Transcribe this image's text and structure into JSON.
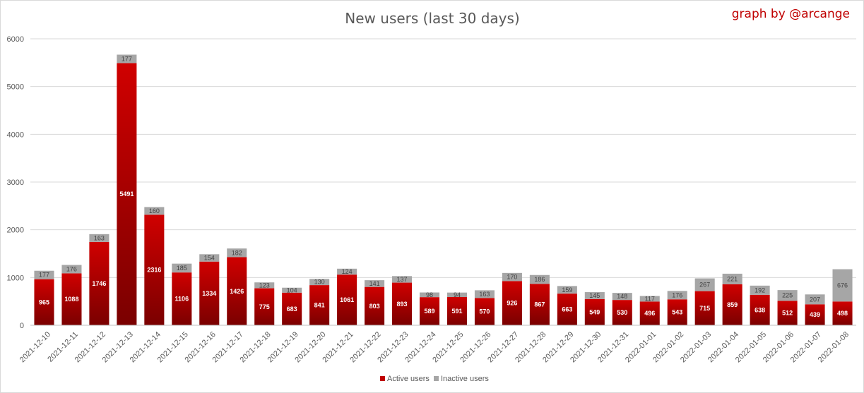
{
  "chart_data": {
    "type": "bar",
    "stacked": true,
    "title": "New users (last 30 days)",
    "credit": "graph by @arcange",
    "ylim": [
      0,
      6000
    ],
    "yticks": [
      0,
      1000,
      2000,
      3000,
      4000,
      5000,
      6000
    ],
    "grid": true,
    "legend_position": "bottom",
    "categories": [
      "2021-12-10",
      "2021-12-11",
      "2021-12-12",
      "2021-12-13",
      "2021-12-14",
      "2021-12-15",
      "2021-12-16",
      "2021-12-17",
      "2021-12-18",
      "2021-12-19",
      "2021-12-20",
      "2021-12-21",
      "2021-12-22",
      "2021-12-23",
      "2021-12-24",
      "2021-12-25",
      "2021-12-26",
      "2021-12-27",
      "2021-12-28",
      "2021-12-29",
      "2021-12-30",
      "2021-12-31",
      "2022-01-01",
      "2022-01-02",
      "2022-01-03",
      "2022-01-04",
      "2022-01-05",
      "2022-01-06",
      "2022-01-07",
      "2022-01-08"
    ],
    "series": [
      {
        "name": "Active users",
        "color": "#c00000",
        "values": [
          965,
          1088,
          1746,
          5491,
          2316,
          1106,
          1334,
          1426,
          775,
          683,
          841,
          1061,
          803,
          893,
          589,
          591,
          570,
          926,
          867,
          663,
          549,
          530,
          496,
          543,
          715,
          859,
          638,
          512,
          439,
          498
        ]
      },
      {
        "name": "Inactive users",
        "color": "#a6a6a6",
        "values": [
          177,
          176,
          163,
          177,
          160,
          185,
          154,
          182,
          123,
          104,
          130,
          124,
          141,
          137,
          98,
          94,
          163,
          170,
          186,
          159,
          145,
          148,
          117,
          176,
          267,
          221,
          192,
          225,
          207,
          676
        ]
      }
    ]
  }
}
